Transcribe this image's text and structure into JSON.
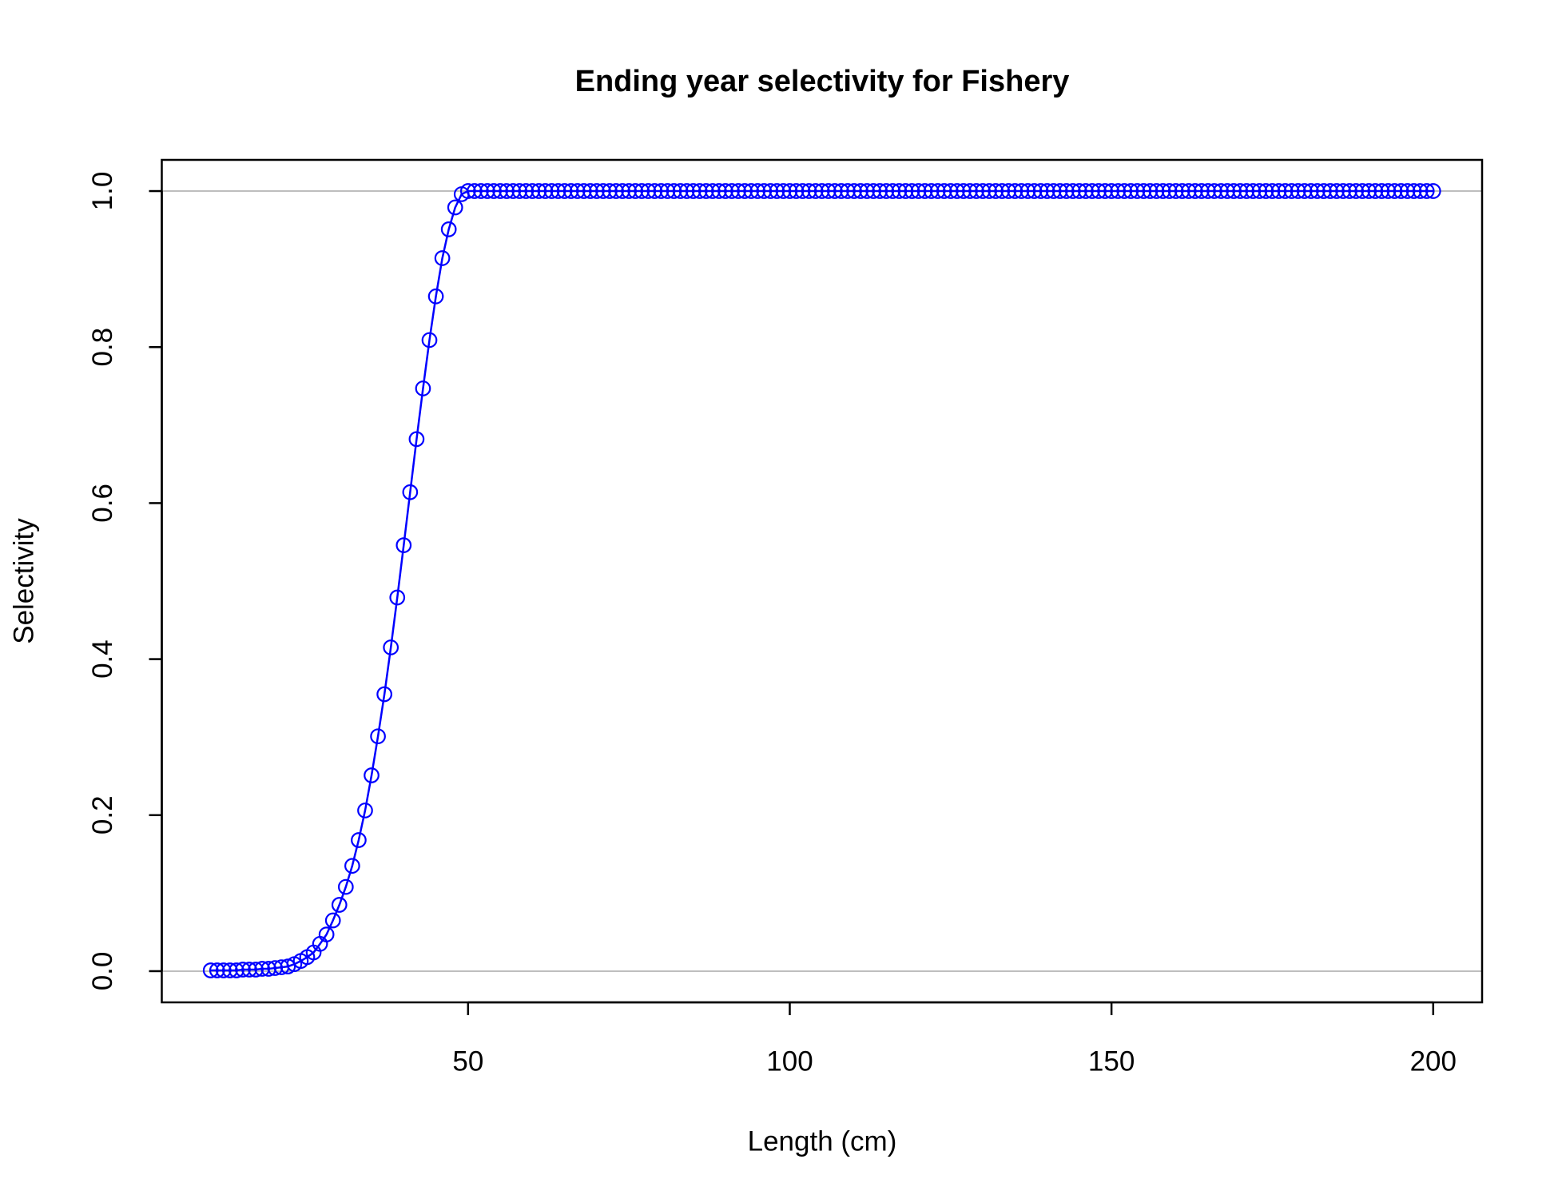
{
  "chart_data": {
    "type": "line",
    "title": "Ending year selectivity for Fishery",
    "xlabel": "Length (cm)",
    "ylabel": "Selectivity",
    "x": [
      10,
      11,
      12,
      13,
      14,
      15,
      16,
      17,
      18,
      19,
      20,
      21,
      22,
      23,
      24,
      25,
      26,
      27,
      28,
      29,
      30,
      31,
      32,
      33,
      34,
      35,
      36,
      37,
      38,
      39,
      40,
      41,
      42,
      43,
      44,
      45,
      46,
      47,
      48,
      49,
      50,
      51,
      52,
      53,
      54,
      55,
      56,
      57,
      58,
      59,
      60,
      61,
      62,
      63,
      64,
      65,
      66,
      67,
      68,
      69,
      70,
      71,
      72,
      73,
      74,
      75,
      76,
      77,
      78,
      79,
      80,
      81,
      82,
      83,
      84,
      85,
      86,
      87,
      88,
      89,
      90,
      91,
      92,
      93,
      94,
      95,
      96,
      97,
      98,
      99,
      100,
      101,
      102,
      103,
      104,
      105,
      106,
      107,
      108,
      109,
      110,
      111,
      112,
      113,
      114,
      115,
      116,
      117,
      118,
      119,
      120,
      121,
      122,
      123,
      124,
      125,
      126,
      127,
      128,
      129,
      130,
      131,
      132,
      133,
      134,
      135,
      136,
      137,
      138,
      139,
      140,
      141,
      142,
      143,
      144,
      145,
      146,
      147,
      148,
      149,
      150,
      151,
      152,
      153,
      154,
      155,
      156,
      157,
      158,
      159,
      160,
      161,
      162,
      163,
      164,
      165,
      166,
      167,
      168,
      169,
      170,
      171,
      172,
      173,
      174,
      175,
      176,
      177,
      178,
      179,
      180,
      181,
      182,
      183,
      184,
      185,
      186,
      187,
      188,
      189,
      190,
      191,
      192,
      193,
      194,
      195,
      196,
      197,
      198,
      199,
      200
    ],
    "series": [
      {
        "color": "#0000ff",
        "values": [
          0.001,
          0.001,
          0.001,
          0.001,
          0.001,
          0.002,
          0.002,
          0.002,
          0.003,
          0.003,
          0.004,
          0.005,
          0.006,
          0.009,
          0.013,
          0.018,
          0.024,
          0.035,
          0.047,
          0.065,
          0.085,
          0.108,
          0.135,
          0.168,
          0.206,
          0.251,
          0.301,
          0.355,
          0.415,
          0.479,
          0.546,
          0.614,
          0.682,
          0.747,
          0.809,
          0.865,
          0.914,
          0.951,
          0.979,
          0.996,
          1,
          1,
          1,
          1,
          1,
          1,
          1,
          1,
          1,
          1,
          1,
          1,
          1,
          1,
          1,
          1,
          1,
          1,
          1,
          1,
          1,
          1,
          1,
          1,
          1,
          1,
          1,
          1,
          1,
          1,
          1,
          1,
          1,
          1,
          1,
          1,
          1,
          1,
          1,
          1,
          1,
          1,
          1,
          1,
          1,
          1,
          1,
          1,
          1,
          1,
          1,
          1,
          1,
          1,
          1,
          1,
          1,
          1,
          1,
          1,
          1,
          1,
          1,
          1,
          1,
          1,
          1,
          1,
          1,
          1,
          1,
          1,
          1,
          1,
          1,
          1,
          1,
          1,
          1,
          1,
          1,
          1,
          1,
          1,
          1,
          1,
          1,
          1,
          1,
          1,
          1,
          1,
          1,
          1,
          1,
          1,
          1,
          1,
          1,
          1,
          1,
          1,
          1,
          1,
          1,
          1,
          1,
          1,
          1,
          1,
          1,
          1,
          1,
          1,
          1,
          1,
          1,
          1,
          1,
          1,
          1,
          1,
          1,
          1,
          1,
          1,
          1,
          1,
          1,
          1,
          1,
          1,
          1,
          1,
          1,
          1,
          1,
          1,
          1,
          1,
          1,
          1,
          1,
          1,
          1,
          1,
          1,
          1,
          1,
          1,
          1
        ]
      }
    ],
    "markers": true,
    "xlim": [
      2.4,
      207.6
    ],
    "xticks": [
      50,
      100,
      150,
      200
    ],
    "ylim": [
      -0.04,
      1.04
    ],
    "yticks": [
      {
        "value": 0,
        "label": "0.0"
      },
      0.2,
      0.4,
      0.6,
      0.8,
      {
        "value": 1,
        "label": "1.0"
      }
    ],
    "hlines": [
      0,
      1
    ],
    "hline_color": "#bebebe"
  }
}
